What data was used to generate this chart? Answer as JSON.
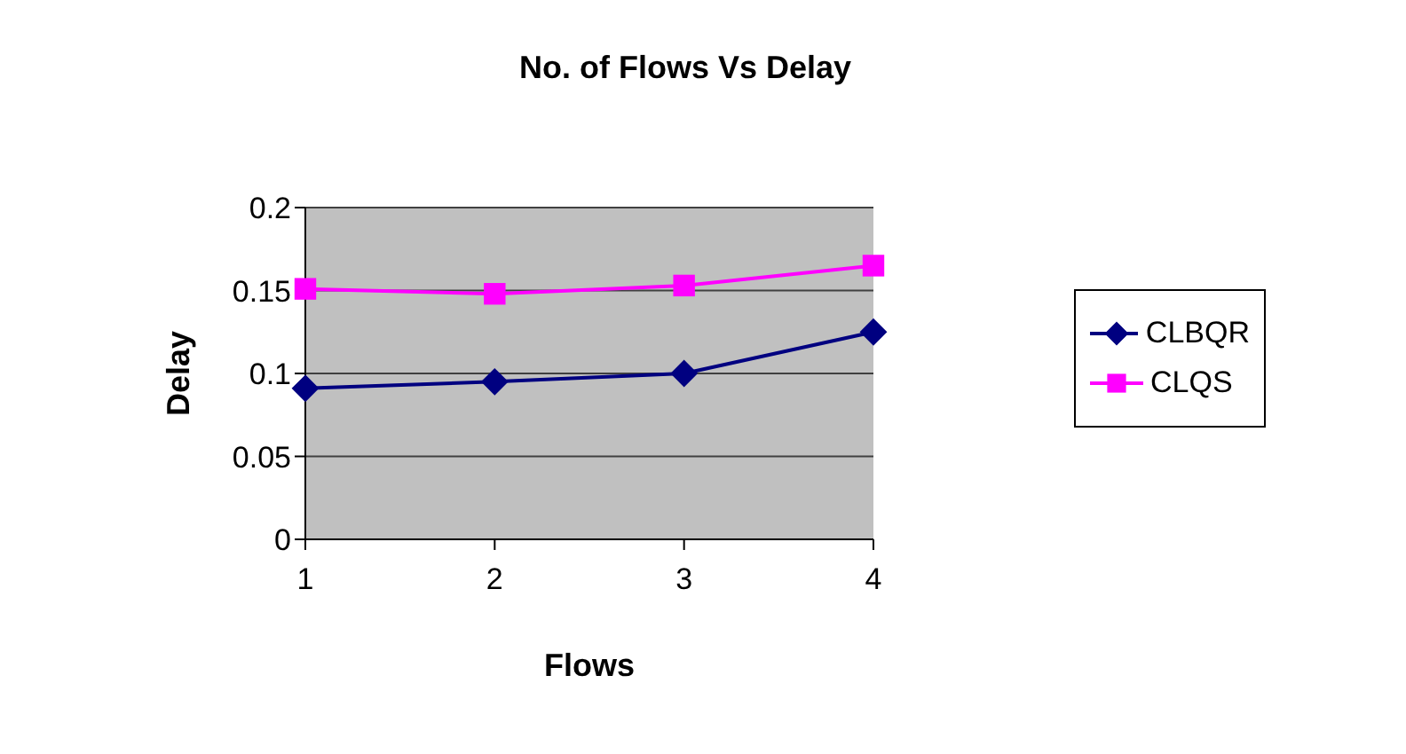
{
  "chart_data": {
    "type": "line",
    "title": "No. of Flows Vs Delay",
    "xlabel": "Flows",
    "ylabel": "Delay",
    "categories": [
      "1",
      "2",
      "3",
      "4"
    ],
    "series": [
      {
        "name": "CLBQR",
        "color": "#000080",
        "marker": "diamond",
        "values": [
          0.091,
          0.095,
          0.1,
          0.125
        ]
      },
      {
        "name": "CLQS",
        "color": "#ff00ff",
        "marker": "square",
        "values": [
          0.151,
          0.148,
          0.153,
          0.165
        ]
      }
    ],
    "ylim": [
      0,
      0.2
    ],
    "yticks": [
      0,
      0.05,
      0.1,
      0.15,
      0.2
    ],
    "grid": "y",
    "legend": "right"
  }
}
